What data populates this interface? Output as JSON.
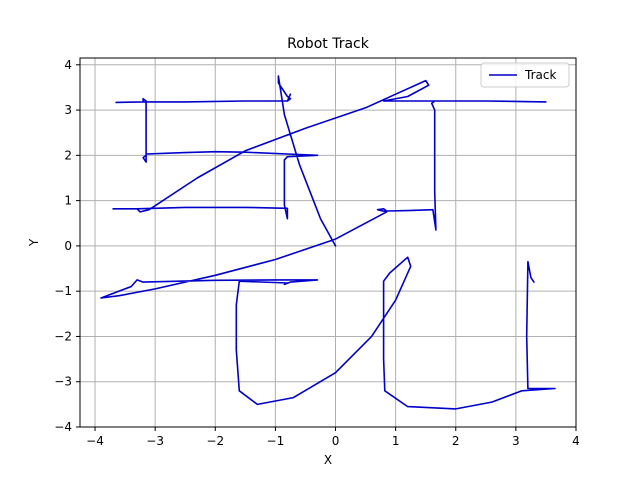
{
  "chart_data": {
    "type": "line",
    "title": "Robot Track",
    "xlabel": "X",
    "ylabel": "Y",
    "xlim": [
      -4.25,
      4.0
    ],
    "ylim": [
      -4.0,
      4.15
    ],
    "xticks": [
      -4,
      -3,
      -2,
      -1,
      0,
      1,
      2,
      3,
      4
    ],
    "yticks": [
      -4,
      -3,
      -2,
      -1,
      0,
      1,
      2,
      3,
      4
    ],
    "grid": true,
    "legend": {
      "position": "top-right"
    },
    "series": [
      {
        "name": "Track",
        "color": "#0000cc",
        "points": [
          [
            0.0,
            0.0
          ],
          [
            -0.25,
            0.6
          ],
          [
            -0.6,
            1.8
          ],
          [
            -0.85,
            2.9
          ],
          [
            -0.95,
            3.75
          ],
          [
            -0.95,
            3.6
          ],
          [
            -0.8,
            3.3
          ],
          [
            -0.75,
            3.25
          ],
          [
            -0.8,
            3.2
          ],
          [
            -0.75,
            3.35
          ],
          [
            -0.8,
            3.2
          ],
          [
            -1.5,
            3.2
          ],
          [
            -2.5,
            3.18
          ],
          [
            -3.2,
            3.18
          ],
          [
            -3.65,
            3.17
          ],
          [
            -3.2,
            3.18
          ],
          [
            -3.2,
            3.25
          ],
          [
            -3.15,
            3.2
          ],
          [
            -3.15,
            2.5
          ],
          [
            -3.15,
            2.0
          ],
          [
            -3.2,
            1.95
          ],
          [
            -3.15,
            1.85
          ],
          [
            -3.15,
            2.03
          ],
          [
            -2.5,
            2.06
          ],
          [
            -2.0,
            2.08
          ],
          [
            -1.5,
            2.07
          ],
          [
            -0.8,
            2.03
          ],
          [
            -0.3,
            2.0
          ],
          [
            -0.8,
            1.97
          ],
          [
            -0.85,
            1.9
          ],
          [
            -0.85,
            1.3
          ],
          [
            -0.85,
            0.9
          ],
          [
            -0.8,
            0.6
          ],
          [
            -0.8,
            0.83
          ],
          [
            -1.5,
            0.85
          ],
          [
            -2.5,
            0.85
          ],
          [
            -3.3,
            0.82
          ],
          [
            -3.7,
            0.82
          ],
          [
            -3.3,
            0.82
          ],
          [
            -3.25,
            0.75
          ],
          [
            -3.1,
            0.8
          ],
          [
            -2.3,
            1.5
          ],
          [
            -1.5,
            2.1
          ],
          [
            -0.5,
            2.6
          ],
          [
            0.5,
            3.05
          ],
          [
            1.0,
            3.35
          ],
          [
            1.5,
            3.65
          ],
          [
            1.55,
            3.55
          ],
          [
            1.2,
            3.3
          ],
          [
            0.8,
            3.2
          ],
          [
            1.3,
            3.2
          ],
          [
            2.5,
            3.2
          ],
          [
            3.5,
            3.18
          ],
          [
            2.5,
            3.2
          ],
          [
            1.65,
            3.2
          ],
          [
            1.6,
            3.15
          ],
          [
            1.65,
            3.0
          ],
          [
            1.65,
            2.0
          ],
          [
            1.65,
            1.2
          ],
          [
            1.67,
            0.35
          ],
          [
            1.62,
            0.8
          ],
          [
            1.2,
            0.78
          ],
          [
            0.85,
            0.77
          ],
          [
            0.8,
            0.82
          ],
          [
            0.7,
            0.8
          ],
          [
            0.85,
            0.75
          ],
          [
            0.0,
            0.15
          ],
          [
            -1.0,
            -0.3
          ],
          [
            -2.0,
            -0.65
          ],
          [
            -3.0,
            -0.95
          ],
          [
            -3.6,
            -1.1
          ],
          [
            -3.9,
            -1.15
          ],
          [
            -3.4,
            -0.9
          ],
          [
            -3.3,
            -0.75
          ],
          [
            -3.2,
            -0.8
          ],
          [
            -2.0,
            -0.76
          ],
          [
            -1.0,
            -0.75
          ],
          [
            -0.3,
            -0.75
          ],
          [
            -0.75,
            -0.8
          ],
          [
            -0.85,
            -0.85
          ],
          [
            -0.8,
            -0.82
          ],
          [
            -1.6,
            -0.78
          ],
          [
            -1.65,
            -1.3
          ],
          [
            -1.65,
            -2.3
          ],
          [
            -1.6,
            -3.2
          ],
          [
            -1.3,
            -3.5
          ],
          [
            -0.7,
            -3.35
          ],
          [
            0.0,
            -2.8
          ],
          [
            0.6,
            -2.0
          ],
          [
            1.0,
            -1.2
          ],
          [
            1.25,
            -0.45
          ],
          [
            1.2,
            -0.25
          ],
          [
            0.9,
            -0.6
          ],
          [
            0.8,
            -0.78
          ],
          [
            0.8,
            -1.5
          ],
          [
            0.8,
            -2.5
          ],
          [
            0.82,
            -3.2
          ],
          [
            1.2,
            -3.55
          ],
          [
            2.0,
            -3.6
          ],
          [
            2.6,
            -3.45
          ],
          [
            3.1,
            -3.2
          ],
          [
            3.65,
            -3.15
          ],
          [
            3.2,
            -3.15
          ],
          [
            3.18,
            -2.0
          ],
          [
            3.2,
            -0.35
          ],
          [
            3.25,
            -0.7
          ],
          [
            3.3,
            -0.8
          ]
        ]
      }
    ]
  }
}
